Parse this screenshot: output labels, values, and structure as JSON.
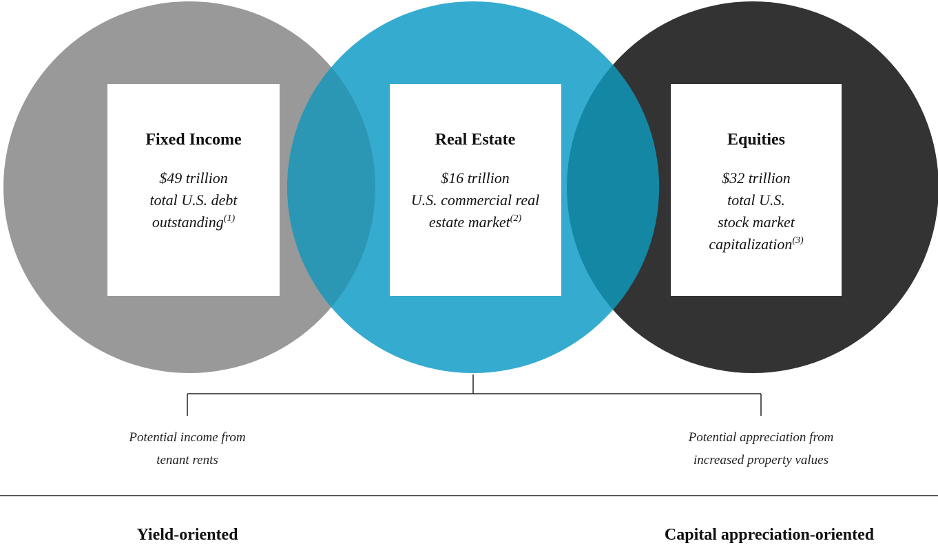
{
  "circles": [
    {
      "title": "Fixed Income",
      "lines": [
        "$49 trillion",
        "total U.S. debt",
        "outstanding"
      ],
      "footnote": "(1)"
    },
    {
      "title": "Real Estate",
      "lines": [
        "$16 trillion",
        "U.S. commercial real",
        "estate market"
      ],
      "footnote": "(2)"
    },
    {
      "title": "Equities",
      "lines": [
        "$32 trillion",
        "total U.S.",
        "stock market",
        "capitalization"
      ],
      "footnote": "(3)"
    }
  ],
  "branches": [
    {
      "lines": [
        "Potential income from",
        "tenant rents"
      ]
    },
    {
      "lines": [
        "Potential appreciation from",
        "increased property values"
      ]
    }
  ],
  "footer": {
    "left": "Yield-oriented",
    "right": "Capital appreciation-oriented"
  }
}
